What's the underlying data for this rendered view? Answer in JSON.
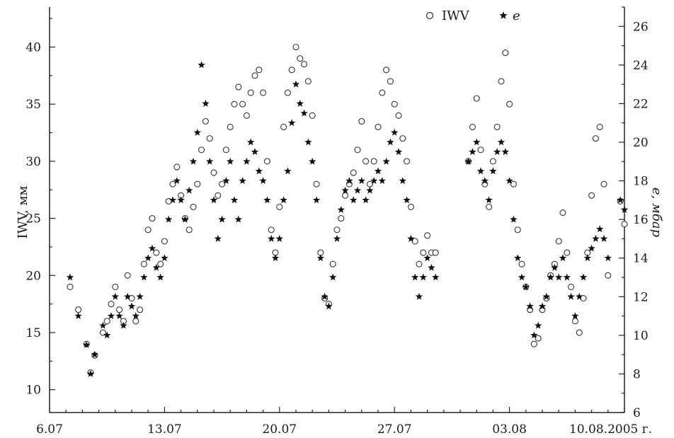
{
  "chart_data": {
    "type": "scatter",
    "title": "",
    "x_axis": {
      "type": "date",
      "range": [
        "2005-07-06",
        "2005-08-10"
      ],
      "tick_labels": [
        {
          "date": "2005-07-06",
          "label": "6.07"
        },
        {
          "date": "2005-07-13",
          "label": "13.07"
        },
        {
          "date": "2005-07-20",
          "label": "20.07"
        },
        {
          "date": "2005-07-27",
          "label": "27.07"
        },
        {
          "date": "2005-08-03",
          "label": "03.08"
        },
        {
          "date": "2005-08-10",
          "label": "10.08.2005 г."
        }
      ]
    },
    "y_left": {
      "label": "IWV, мм",
      "ylim": [
        8,
        43.5
      ],
      "ticks": [
        10,
        15,
        20,
        25,
        30,
        35,
        40
      ]
    },
    "y_right": {
      "label": "e, мбар",
      "ylim": [
        6,
        27
      ],
      "ticks": [
        6,
        8,
        10,
        12,
        14,
        16,
        18,
        20,
        22,
        24,
        26
      ]
    },
    "legend": {
      "placement": "top-right",
      "entries": [
        {
          "name": "IWV",
          "marker": "open-circle"
        },
        {
          "name": "e",
          "marker": "star"
        }
      ]
    },
    "series": [
      {
        "name": "IWV",
        "axis": "left",
        "marker": "open-circle",
        "color": "#333333",
        "points": [
          [
            "2005-07-07T06:00",
            19
          ],
          [
            "2005-07-07T18:00",
            17
          ],
          [
            "2005-07-08T06:00",
            14
          ],
          [
            "2005-07-08T12:00",
            11.5
          ],
          [
            "2005-07-08T18:00",
            13
          ],
          [
            "2005-07-09T06:00",
            15
          ],
          [
            "2005-07-09T12:00",
            16
          ],
          [
            "2005-07-09T18:00",
            17.5
          ],
          [
            "2005-07-10T00:00",
            19
          ],
          [
            "2005-07-10T06:00",
            17
          ],
          [
            "2005-07-10T12:00",
            16
          ],
          [
            "2005-07-10T18:00",
            20
          ],
          [
            "2005-07-11T00:00",
            18
          ],
          [
            "2005-07-11T06:00",
            16
          ],
          [
            "2005-07-11T12:00",
            17
          ],
          [
            "2005-07-11T18:00",
            21
          ],
          [
            "2005-07-12T00:00",
            24
          ],
          [
            "2005-07-12T06:00",
            25
          ],
          [
            "2005-07-12T12:00",
            22
          ],
          [
            "2005-07-12T18:00",
            21
          ],
          [
            "2005-07-13T00:00",
            23
          ],
          [
            "2005-07-13T06:00",
            26.5
          ],
          [
            "2005-07-13T12:00",
            28
          ],
          [
            "2005-07-13T18:00",
            29.5
          ],
          [
            "2005-07-14T00:00",
            27
          ],
          [
            "2005-07-14T06:00",
            25
          ],
          [
            "2005-07-14T12:00",
            24
          ],
          [
            "2005-07-14T18:00",
            26
          ],
          [
            "2005-07-15T00:00",
            28
          ],
          [
            "2005-07-15T06:00",
            31
          ],
          [
            "2005-07-15T12:00",
            33.5
          ],
          [
            "2005-07-15T18:00",
            32
          ],
          [
            "2005-07-16T00:00",
            29
          ],
          [
            "2005-07-16T06:00",
            27
          ],
          [
            "2005-07-16T12:00",
            28
          ],
          [
            "2005-07-16T18:00",
            31
          ],
          [
            "2005-07-17T00:00",
            33
          ],
          [
            "2005-07-17T06:00",
            35
          ],
          [
            "2005-07-17T12:00",
            36.5
          ],
          [
            "2005-07-17T18:00",
            35
          ],
          [
            "2005-07-18T00:00",
            34
          ],
          [
            "2005-07-18T06:00",
            36
          ],
          [
            "2005-07-18T12:00",
            37.5
          ],
          [
            "2005-07-18T18:00",
            38
          ],
          [
            "2005-07-19T00:00",
            36
          ],
          [
            "2005-07-19T06:00",
            30
          ],
          [
            "2005-07-19T12:00",
            24
          ],
          [
            "2005-07-19T18:00",
            22
          ],
          [
            "2005-07-20T00:00",
            26
          ],
          [
            "2005-07-20T06:00",
            33
          ],
          [
            "2005-07-20T12:00",
            36
          ],
          [
            "2005-07-20T18:00",
            38
          ],
          [
            "2005-07-21T00:00",
            40
          ],
          [
            "2005-07-21T06:00",
            39
          ],
          [
            "2005-07-21T12:00",
            38.5
          ],
          [
            "2005-07-21T18:00",
            37
          ],
          [
            "2005-07-22T00:00",
            34
          ],
          [
            "2005-07-22T06:00",
            28
          ],
          [
            "2005-07-22T12:00",
            22
          ],
          [
            "2005-07-22T18:00",
            18
          ],
          [
            "2005-07-23T00:00",
            17.5
          ],
          [
            "2005-07-23T06:00",
            21
          ],
          [
            "2005-07-23T12:00",
            24
          ],
          [
            "2005-07-23T18:00",
            25
          ],
          [
            "2005-07-24T00:00",
            27
          ],
          [
            "2005-07-24T06:00",
            28
          ],
          [
            "2005-07-24T12:00",
            29
          ],
          [
            "2005-07-24T18:00",
            31
          ],
          [
            "2005-07-25T00:00",
            33.5
          ],
          [
            "2005-07-25T06:00",
            30
          ],
          [
            "2005-07-25T12:00",
            28
          ],
          [
            "2005-07-25T18:00",
            30
          ],
          [
            "2005-07-26T00:00",
            33
          ],
          [
            "2005-07-26T06:00",
            36
          ],
          [
            "2005-07-26T12:00",
            38
          ],
          [
            "2005-07-26T18:00",
            37
          ],
          [
            "2005-07-27T00:00",
            35
          ],
          [
            "2005-07-27T06:00",
            34
          ],
          [
            "2005-07-27T12:00",
            32
          ],
          [
            "2005-07-27T18:00",
            30
          ],
          [
            "2005-07-28T00:00",
            26
          ],
          [
            "2005-07-28T06:00",
            23
          ],
          [
            "2005-07-28T12:00",
            21
          ],
          [
            "2005-07-28T18:00",
            22
          ],
          [
            "2005-07-29T00:00",
            23.5
          ],
          [
            "2005-07-29T06:00",
            22
          ],
          [
            "2005-07-29T12:00",
            22
          ],
          [
            "2005-07-31T12:00",
            30
          ],
          [
            "2005-07-31T18:00",
            33
          ],
          [
            "2005-08-01T00:00",
            35.5
          ],
          [
            "2005-08-01T06:00",
            31
          ],
          [
            "2005-08-01T12:00",
            28
          ],
          [
            "2005-08-01T18:00",
            26
          ],
          [
            "2005-08-02T00:00",
            30
          ],
          [
            "2005-08-02T06:00",
            33
          ],
          [
            "2005-08-02T12:00",
            37
          ],
          [
            "2005-08-02T18:00",
            39.5
          ],
          [
            "2005-08-03T00:00",
            35
          ],
          [
            "2005-08-03T06:00",
            28
          ],
          [
            "2005-08-03T12:00",
            24
          ],
          [
            "2005-08-03T18:00",
            21
          ],
          [
            "2005-08-04T00:00",
            19
          ],
          [
            "2005-08-04T06:00",
            17
          ],
          [
            "2005-08-04T12:00",
            14
          ],
          [
            "2005-08-04T18:00",
            14.5
          ],
          [
            "2005-08-05T00:00",
            17
          ],
          [
            "2005-08-05T06:00",
            18
          ],
          [
            "2005-08-05T12:00",
            20
          ],
          [
            "2005-08-05T18:00",
            21
          ],
          [
            "2005-08-06T00:00",
            23
          ],
          [
            "2005-08-06T06:00",
            25.5
          ],
          [
            "2005-08-06T12:00",
            22
          ],
          [
            "2005-08-06T18:00",
            19
          ],
          [
            "2005-08-07T00:00",
            16
          ],
          [
            "2005-08-07T06:00",
            15
          ],
          [
            "2005-08-07T12:00",
            18
          ],
          [
            "2005-08-07T18:00",
            22
          ],
          [
            "2005-08-08T00:00",
            27
          ],
          [
            "2005-08-08T06:00",
            32
          ],
          [
            "2005-08-08T12:00",
            33
          ],
          [
            "2005-08-08T18:00",
            28
          ],
          [
            "2005-08-09T00:00",
            20
          ],
          [
            "2005-08-09T18:00",
            26.5
          ],
          [
            "2005-08-10T00:00",
            24.5
          ]
        ]
      },
      {
        "name": "e",
        "axis": "right",
        "marker": "star",
        "color": "#111111",
        "points": [
          [
            "2005-07-07T06:00",
            13
          ],
          [
            "2005-07-07T18:00",
            11
          ],
          [
            "2005-07-08T06:00",
            9.5
          ],
          [
            "2005-07-08T12:00",
            8
          ],
          [
            "2005-07-08T18:00",
            9
          ],
          [
            "2005-07-09T06:00",
            10.5
          ],
          [
            "2005-07-09T12:00",
            10
          ],
          [
            "2005-07-09T18:00",
            11
          ],
          [
            "2005-07-10T00:00",
            12
          ],
          [
            "2005-07-10T06:00",
            11
          ],
          [
            "2005-07-10T12:00",
            10.5
          ],
          [
            "2005-07-10T18:00",
            12
          ],
          [
            "2005-07-11T00:00",
            11.5
          ],
          [
            "2005-07-11T06:00",
            11
          ],
          [
            "2005-07-11T12:00",
            12
          ],
          [
            "2005-07-11T18:00",
            13
          ],
          [
            "2005-07-12T00:00",
            14
          ],
          [
            "2005-07-12T06:00",
            14.5
          ],
          [
            "2005-07-12T12:00",
            13.5
          ],
          [
            "2005-07-12T18:00",
            13
          ],
          [
            "2005-07-13T00:00",
            14
          ],
          [
            "2005-07-13T06:00",
            16
          ],
          [
            "2005-07-13T12:00",
            17
          ],
          [
            "2005-07-13T18:00",
            18
          ],
          [
            "2005-07-14T00:00",
            17
          ],
          [
            "2005-07-14T06:00",
            16
          ],
          [
            "2005-07-14T12:00",
            17.5
          ],
          [
            "2005-07-14T18:00",
            19
          ],
          [
            "2005-07-15T00:00",
            20.5
          ],
          [
            "2005-07-15T06:00",
            24
          ],
          [
            "2005-07-15T12:00",
            22
          ],
          [
            "2005-07-15T18:00",
            19
          ],
          [
            "2005-07-16T00:00",
            17
          ],
          [
            "2005-07-16T06:00",
            15
          ],
          [
            "2005-07-16T12:00",
            16
          ],
          [
            "2005-07-16T18:00",
            18
          ],
          [
            "2005-07-17T00:00",
            19
          ],
          [
            "2005-07-17T06:00",
            17
          ],
          [
            "2005-07-17T12:00",
            16
          ],
          [
            "2005-07-17T18:00",
            18
          ],
          [
            "2005-07-18T00:00",
            19
          ],
          [
            "2005-07-18T06:00",
            20
          ],
          [
            "2005-07-18T12:00",
            19.5
          ],
          [
            "2005-07-18T18:00",
            18.5
          ],
          [
            "2005-07-19T00:00",
            18
          ],
          [
            "2005-07-19T06:00",
            17
          ],
          [
            "2005-07-19T12:00",
            15
          ],
          [
            "2005-07-19T18:00",
            14
          ],
          [
            "2005-07-20T00:00",
            15
          ],
          [
            "2005-07-20T06:00",
            17
          ],
          [
            "2005-07-20T12:00",
            18.5
          ],
          [
            "2005-07-20T18:00",
            21
          ],
          [
            "2005-07-21T00:00",
            23
          ],
          [
            "2005-07-21T06:00",
            22
          ],
          [
            "2005-07-21T12:00",
            21.5
          ],
          [
            "2005-07-21T18:00",
            20
          ],
          [
            "2005-07-22T00:00",
            19
          ],
          [
            "2005-07-22T06:00",
            17
          ],
          [
            "2005-07-22T12:00",
            14
          ],
          [
            "2005-07-22T18:00",
            12
          ],
          [
            "2005-07-23T00:00",
            11.5
          ],
          [
            "2005-07-23T06:00",
            13
          ],
          [
            "2005-07-23T12:00",
            15
          ],
          [
            "2005-07-23T18:00",
            16.5
          ],
          [
            "2005-07-24T00:00",
            17.5
          ],
          [
            "2005-07-24T06:00",
            18
          ],
          [
            "2005-07-24T12:00",
            17
          ],
          [
            "2005-07-24T18:00",
            17.5
          ],
          [
            "2005-07-25T00:00",
            18
          ],
          [
            "2005-07-25T06:00",
            17
          ],
          [
            "2005-07-25T12:00",
            17.5
          ],
          [
            "2005-07-25T18:00",
            18
          ],
          [
            "2005-07-26T00:00",
            18.5
          ],
          [
            "2005-07-26T06:00",
            18
          ],
          [
            "2005-07-26T12:00",
            19
          ],
          [
            "2005-07-26T18:00",
            20
          ],
          [
            "2005-07-27T00:00",
            20.5
          ],
          [
            "2005-07-27T06:00",
            19.5
          ],
          [
            "2005-07-27T12:00",
            18
          ],
          [
            "2005-07-27T18:00",
            17
          ],
          [
            "2005-07-28T00:00",
            15
          ],
          [
            "2005-07-28T06:00",
            13
          ],
          [
            "2005-07-28T12:00",
            12
          ],
          [
            "2005-07-28T18:00",
            13
          ],
          [
            "2005-07-29T00:00",
            14
          ],
          [
            "2005-07-29T06:00",
            13.5
          ],
          [
            "2005-07-29T12:00",
            13
          ],
          [
            "2005-07-31T12:00",
            19
          ],
          [
            "2005-07-31T18:00",
            19.5
          ],
          [
            "2005-08-01T00:00",
            20
          ],
          [
            "2005-08-01T06:00",
            18.5
          ],
          [
            "2005-08-01T12:00",
            18
          ],
          [
            "2005-08-01T18:00",
            17
          ],
          [
            "2005-08-02T00:00",
            18.5
          ],
          [
            "2005-08-02T06:00",
            19.5
          ],
          [
            "2005-08-02T12:00",
            20
          ],
          [
            "2005-08-02T18:00",
            19.5
          ],
          [
            "2005-08-03T00:00",
            18
          ],
          [
            "2005-08-03T06:00",
            16
          ],
          [
            "2005-08-03T12:00",
            14
          ],
          [
            "2005-08-03T18:00",
            13
          ],
          [
            "2005-08-04T00:00",
            12.5
          ],
          [
            "2005-08-04T06:00",
            11.5
          ],
          [
            "2005-08-04T12:00",
            10
          ],
          [
            "2005-08-04T18:00",
            10.5
          ],
          [
            "2005-08-05T00:00",
            11.5
          ],
          [
            "2005-08-05T06:00",
            12
          ],
          [
            "2005-08-05T12:00",
            13
          ],
          [
            "2005-08-05T18:00",
            13.5
          ],
          [
            "2005-08-06T00:00",
            13
          ],
          [
            "2005-08-06T06:00",
            14
          ],
          [
            "2005-08-06T12:00",
            13
          ],
          [
            "2005-08-06T18:00",
            12
          ],
          [
            "2005-08-07T00:00",
            11
          ],
          [
            "2005-08-07T06:00",
            12
          ],
          [
            "2005-08-07T12:00",
            13
          ],
          [
            "2005-08-07T18:00",
            14
          ],
          [
            "2005-08-08T00:00",
            14.5
          ],
          [
            "2005-08-08T06:00",
            15
          ],
          [
            "2005-08-08T12:00",
            15.5
          ],
          [
            "2005-08-08T18:00",
            15
          ],
          [
            "2005-08-09T00:00",
            14
          ],
          [
            "2005-08-09T18:00",
            17
          ],
          [
            "2005-08-10T00:00",
            16.5
          ]
        ]
      }
    ]
  }
}
